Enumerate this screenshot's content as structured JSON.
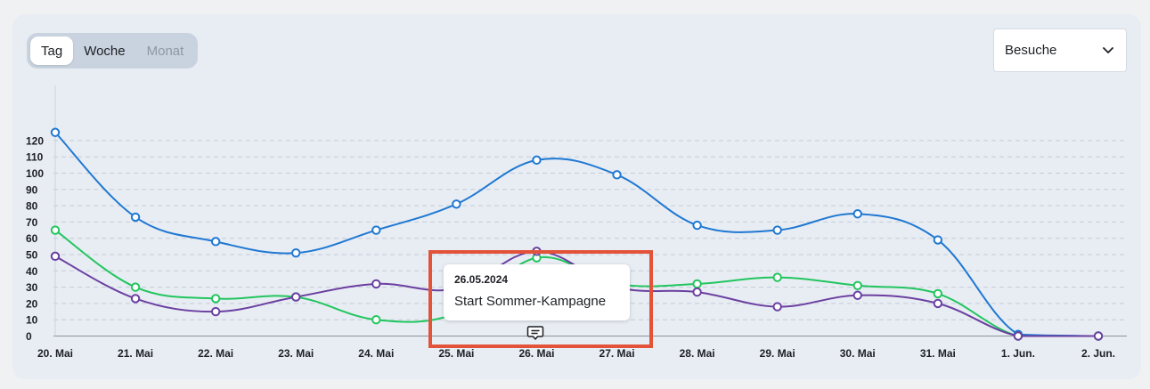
{
  "toggle": {
    "items": [
      {
        "label": "Tag",
        "state": "active"
      },
      {
        "label": "Woche",
        "state": "normal"
      },
      {
        "label": "Monat",
        "state": "disabled"
      }
    ]
  },
  "metric_select": {
    "value": "Besuche",
    "icon": "chevron-down-icon"
  },
  "annotation": {
    "date": "26.05.2024",
    "text": "Start Sommer-Kampagne",
    "icon": "comment-icon"
  },
  "colors": {
    "blue": "#1f78d1",
    "green": "#22c55e",
    "purple": "#6b3fa0",
    "highlight": "#e2533a"
  },
  "chart_data": {
    "type": "line",
    "categories": [
      "20. Mai",
      "21. Mai",
      "22. Mai",
      "23. Mai",
      "24. Mai",
      "25. Mai",
      "26. Mai",
      "27. Mai",
      "28. Mai",
      "29. Mai",
      "30. Mai",
      "31. Mai",
      "1. Jun.",
      "2. Jun."
    ],
    "series": [
      {
        "color": "#1f78d1",
        "values": [
          125,
          73,
          58,
          51,
          65,
          81,
          108,
          99,
          68,
          65,
          75,
          59,
          1,
          0
        ]
      },
      {
        "color": "#22c55e",
        "values": [
          65,
          30,
          23,
          24,
          10,
          14,
          48,
          32,
          32,
          36,
          31,
          26,
          0,
          0
        ]
      },
      {
        "color": "#6b3fa0",
        "values": [
          49,
          23,
          15,
          24,
          32,
          29,
          52,
          30,
          27,
          18,
          25,
          20,
          0,
          0
        ]
      }
    ],
    "yticks": [
      0,
      10,
      20,
      30,
      40,
      50,
      60,
      70,
      80,
      90,
      100,
      110,
      120
    ],
    "ylim": [
      0,
      125
    ],
    "grid": true,
    "legend": "none",
    "title": "",
    "xlabel": "",
    "ylabel": ""
  }
}
